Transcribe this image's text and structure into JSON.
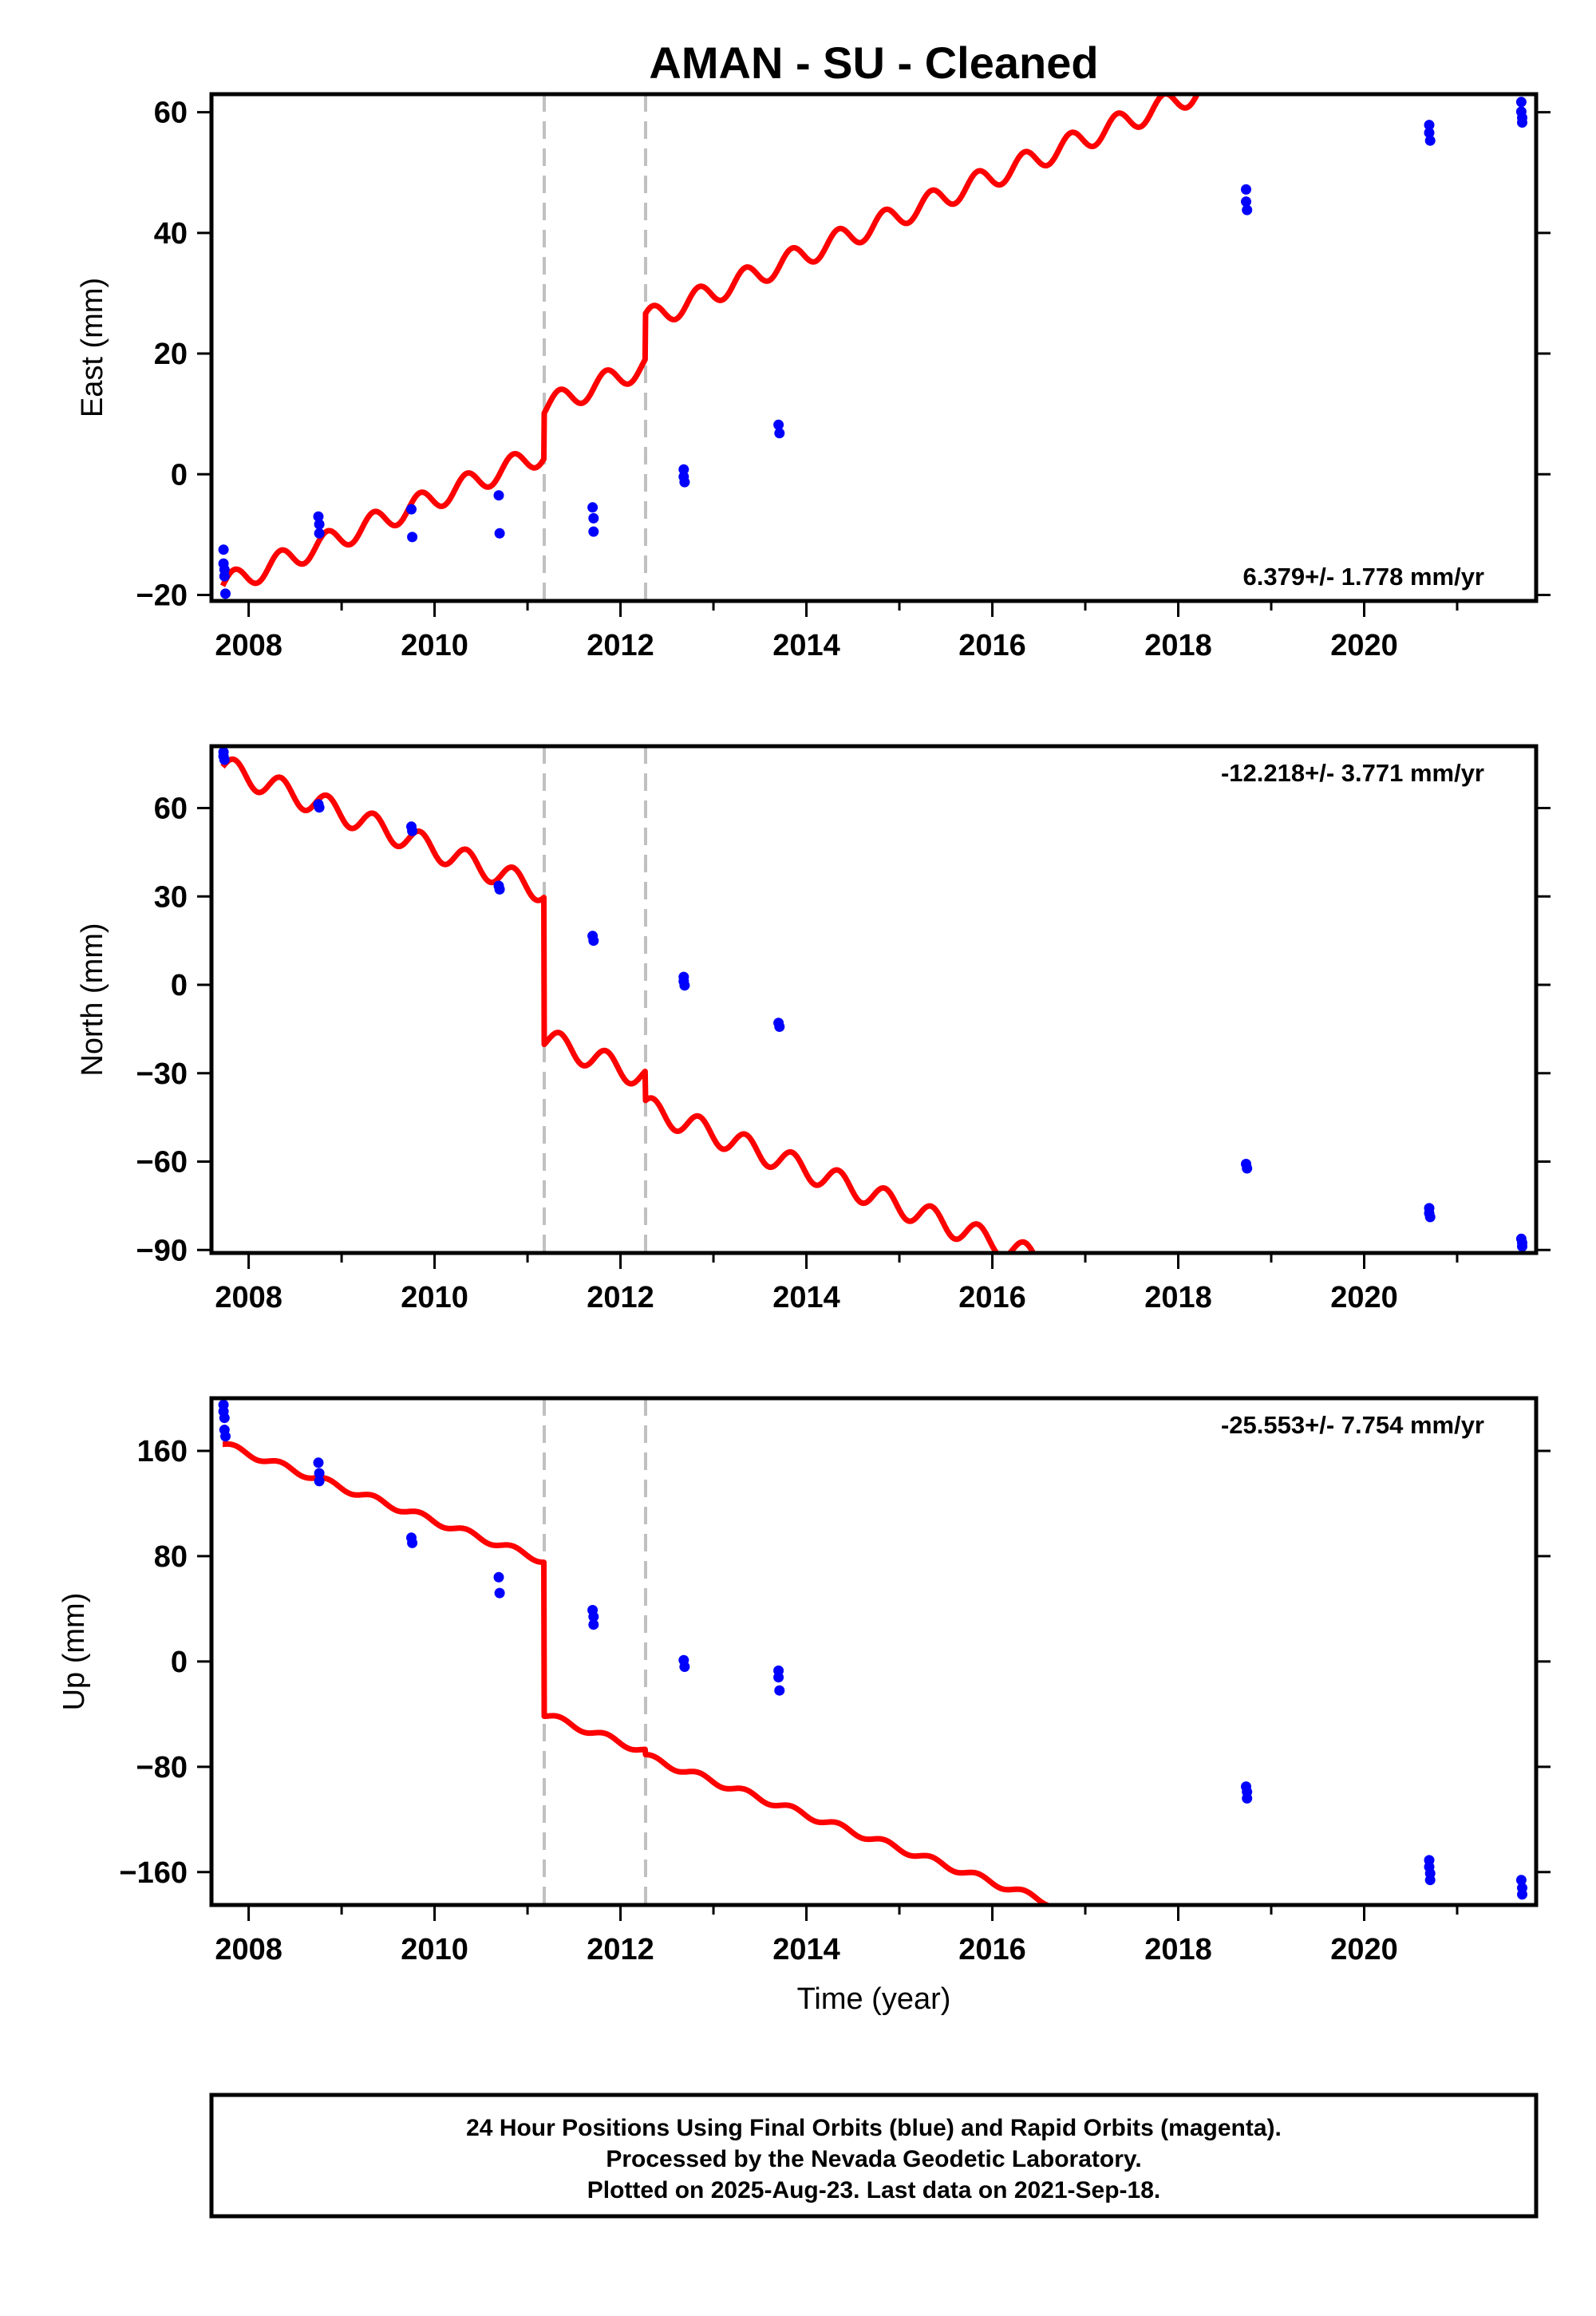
{
  "title": "AMAN  - SU - Cleaned",
  "xlabel": "Time (year)",
  "colors": {
    "model": "#ff0000",
    "obs": "#0000ff",
    "offset": "#c0c0c0",
    "frame": "#000000"
  },
  "footer": {
    "line1": "24 Hour Positions Using Final Orbits (blue) and Rapid Orbits (magenta).",
    "line2": "Processed by the Nevada Geodetic Laboratory.",
    "line3": "Plotted on 2025-Aug-23. Last data on 2021-Sep-18."
  },
  "chart_data": [
    {
      "type": "scatter",
      "panel": "east",
      "ylabel": "East (mm)",
      "rate": "6.379+/- 1.778 mm/yr",
      "rate_position": "bottom-right",
      "xlim": [
        2007.6,
        2021.85
      ],
      "ylim": [
        -21,
        63
      ],
      "xticks": [
        2008,
        2010,
        2012,
        2014,
        2016,
        2018,
        2020
      ],
      "yticks": [
        -20,
        0,
        20,
        40,
        60
      ],
      "ytick_labels": [
        "−20",
        "0",
        "20",
        "40",
        "60"
      ],
      "offsets": [
        2011.18,
        2012.27
      ],
      "model": {
        "start": 2007.72,
        "end": 2021.72,
        "rate": 6.379,
        "amplitude": 1.9,
        "segments": [
          {
            "from": 2007.72,
            "to": 2011.18,
            "base": -18.5
          },
          {
            "from": 2011.18,
            "to": 2012.27,
            "base": -11.0
          },
          {
            "from": 2012.27,
            "to": 2021.72,
            "base": -3.5
          }
        ]
      },
      "points": [
        [
          2007.73,
          -12.5
        ],
        [
          2007.73,
          -14.8
        ],
        [
          2007.74,
          -15.8
        ],
        [
          2007.74,
          -16.9
        ],
        [
          2007.75,
          -19.8
        ],
        [
          2008.75,
          -7.0
        ],
        [
          2008.76,
          -8.3
        ],
        [
          2008.76,
          -9.8
        ],
        [
          2009.75,
          -5.8
        ],
        [
          2009.76,
          -10.4
        ],
        [
          2010.69,
          -3.5
        ],
        [
          2010.7,
          -9.8
        ],
        [
          2011.7,
          -5.5
        ],
        [
          2011.71,
          -7.3
        ],
        [
          2011.71,
          -9.5
        ],
        [
          2012.68,
          0.8
        ],
        [
          2012.68,
          -0.4
        ],
        [
          2012.69,
          -1.3
        ],
        [
          2013.7,
          8.2
        ],
        [
          2013.71,
          6.8
        ],
        [
          2018.73,
          47.2
        ],
        [
          2018.73,
          45.2
        ],
        [
          2018.74,
          43.8
        ],
        [
          2020.7,
          57.9
        ],
        [
          2020.7,
          56.6
        ],
        [
          2020.71,
          55.3
        ],
        [
          2021.69,
          61.7
        ],
        [
          2021.69,
          60.1
        ],
        [
          2021.7,
          59.1
        ],
        [
          2021.7,
          58.3
        ]
      ]
    },
    {
      "type": "scatter",
      "panel": "north",
      "ylabel": "North (mm)",
      "rate": "-12.218+/- 3.771 mm/yr",
      "rate_position": "top-right",
      "xlim": [
        2007.6,
        2021.85
      ],
      "ylim": [
        -91,
        81
      ],
      "xticks": [
        2008,
        2010,
        2012,
        2014,
        2016,
        2018,
        2020
      ],
      "yticks": [
        -90,
        -60,
        -30,
        0,
        30,
        60
      ],
      "ytick_labels": [
        "−90",
        "−60",
        "−30",
        "0",
        "30",
        "60"
      ],
      "offsets": [
        2011.18,
        2012.27
      ],
      "model": {
        "start": 2007.72,
        "end": 2021.72,
        "rate": -12.218,
        "amplitude": 4.0,
        "segments": [
          {
            "from": 2007.72,
            "to": 2011.18,
            "base": 74.0
          },
          {
            "from": 2011.18,
            "to": 2012.27,
            "base": 24.0
          },
          {
            "from": 2012.27,
            "to": 2021.72,
            "base": 14.0
          }
        ]
      },
      "points": [
        [
          2007.73,
          79.0
        ],
        [
          2007.73,
          77.6
        ],
        [
          2007.74,
          76.4
        ],
        [
          2008.75,
          61.3
        ],
        [
          2008.76,
          60.2
        ],
        [
          2009.75,
          53.7
        ],
        [
          2009.76,
          52.2
        ],
        [
          2010.69,
          33.6
        ],
        [
          2010.7,
          32.4
        ],
        [
          2011.7,
          16.6
        ],
        [
          2011.71,
          15.0
        ],
        [
          2012.68,
          2.7
        ],
        [
          2012.68,
          1.2
        ],
        [
          2012.69,
          -0.2
        ],
        [
          2013.7,
          -12.9
        ],
        [
          2013.71,
          -14.2
        ],
        [
          2018.73,
          -60.8
        ],
        [
          2018.74,
          -62.3
        ],
        [
          2020.7,
          -75.8
        ],
        [
          2020.7,
          -77.5
        ],
        [
          2020.71,
          -78.8
        ],
        [
          2021.69,
          -86.2
        ],
        [
          2021.7,
          -87.6
        ],
        [
          2021.7,
          -88.8
        ]
      ]
    },
    {
      "type": "scatter",
      "panel": "up",
      "ylabel": "Up (mm)",
      "rate": "-25.553+/- 7.754 mm/yr",
      "rate_position": "top-right",
      "xlim": [
        2007.6,
        2021.85
      ],
      "ylim": [
        -185,
        200
      ],
      "xticks": [
        2008,
        2010,
        2012,
        2014,
        2016,
        2018,
        2020
      ],
      "yticks": [
        -160,
        -80,
        0,
        80,
        160
      ],
      "ytick_labels": [
        "−160",
        "−80",
        "0",
        "80",
        "160"
      ],
      "offsets": [
        2011.18,
        2012.27
      ],
      "model": {
        "start": 2007.72,
        "end": 2021.72,
        "rate": -25.553,
        "amplitude": 2.5,
        "segments": [
          {
            "from": 2007.72,
            "to": 2011.18,
            "base": 165.0
          },
          {
            "from": 2011.18,
            "to": 2012.27,
            "base": 48.0
          },
          {
            "from": 2012.27,
            "to": 2021.72,
            "base": 44.0
          }
        ]
      },
      "points": [
        [
          2007.73,
          195.0
        ],
        [
          2007.73,
          190.0
        ],
        [
          2007.74,
          185.0
        ],
        [
          2007.74,
          176.0
        ],
        [
          2007.75,
          171.0
        ],
        [
          2008.75,
          151.0
        ],
        [
          2008.76,
          143.0
        ],
        [
          2008.76,
          137.0
        ],
        [
          2009.75,
          94.0
        ],
        [
          2009.76,
          90.0
        ],
        [
          2010.69,
          64.0
        ],
        [
          2010.7,
          52.0
        ],
        [
          2011.7,
          39.0
        ],
        [
          2011.71,
          34.0
        ],
        [
          2011.71,
          28.0
        ],
        [
          2012.68,
          1.0
        ],
        [
          2012.69,
          -4.0
        ],
        [
          2013.7,
          -7.0
        ],
        [
          2013.7,
          -12.0
        ],
        [
          2013.71,
          -22.0
        ],
        [
          2018.73,
          -95.0
        ],
        [
          2018.74,
          -99.0
        ],
        [
          2018.74,
          -104.0
        ],
        [
          2020.7,
          -151.0
        ],
        [
          2020.7,
          -156.0
        ],
        [
          2020.71,
          -161.0
        ],
        [
          2020.71,
          -166.0
        ],
        [
          2021.69,
          -166.0
        ],
        [
          2021.7,
          -172.0
        ],
        [
          2021.7,
          -177.0
        ]
      ]
    }
  ]
}
